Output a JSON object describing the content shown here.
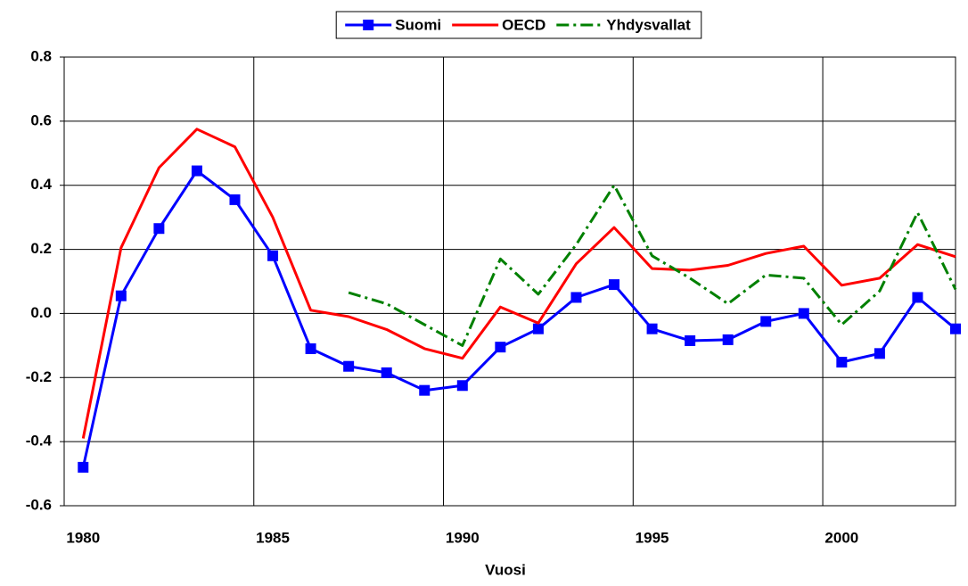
{
  "chart_data": {
    "type": "line",
    "x_label": "Vuosi",
    "categories": [
      "1980",
      null,
      null,
      null,
      null,
      "1985",
      null,
      null,
      null,
      null,
      "1990",
      null,
      null,
      null,
      null,
      "1995",
      null,
      null,
      null,
      null,
      "2000",
      null,
      null,
      null
    ],
    "ylim": [
      -0.6,
      0.8
    ],
    "yticks": [
      -0.6,
      -0.4,
      -0.2,
      {
        "value": 0,
        "label": "0.0"
      },
      {
        "value": 0.2,
        "label": "0.2"
      },
      0.4,
      0.6,
      0.8
    ],
    "grid": true,
    "legend": "top",
    "series": [
      {
        "name": "Suomi",
        "color": "#0000ff",
        "style": "solid",
        "marker": "square",
        "values": [
          -0.48,
          0.055,
          0.265,
          0.445,
          0.355,
          0.18,
          -0.11,
          -0.165,
          -0.185,
          -0.24,
          -0.225,
          -0.105,
          -0.048,
          0.05,
          0.09,
          -0.048,
          -0.085,
          -0.082,
          -0.025,
          0.0,
          -0.152,
          -0.125,
          0.05,
          -0.048
        ]
      },
      {
        "name": "OECD",
        "color": "#ff0000",
        "style": "solid",
        "marker": "none",
        "values": [
          -0.39,
          0.205,
          0.455,
          0.575,
          0.52,
          0.3,
          0.01,
          -0.01,
          -0.05,
          -0.11,
          -0.14,
          0.02,
          -0.03,
          0.155,
          0.268,
          0.14,
          0.135,
          0.15,
          0.187,
          0.21,
          0.088,
          0.11,
          0.215,
          0.177
        ]
      },
      {
        "name": "Yhdysvallat",
        "color": "#008000",
        "style": "dashdot",
        "marker": "none",
        "values": [
          null,
          null,
          null,
          null,
          null,
          null,
          null,
          0.065,
          0.03,
          -0.035,
          -0.1,
          0.17,
          0.06,
          0.215,
          0.4,
          0.18,
          0.11,
          0.03,
          0.12,
          0.11,
          -0.035,
          0.07,
          0.315,
          0.075
        ]
      }
    ]
  }
}
